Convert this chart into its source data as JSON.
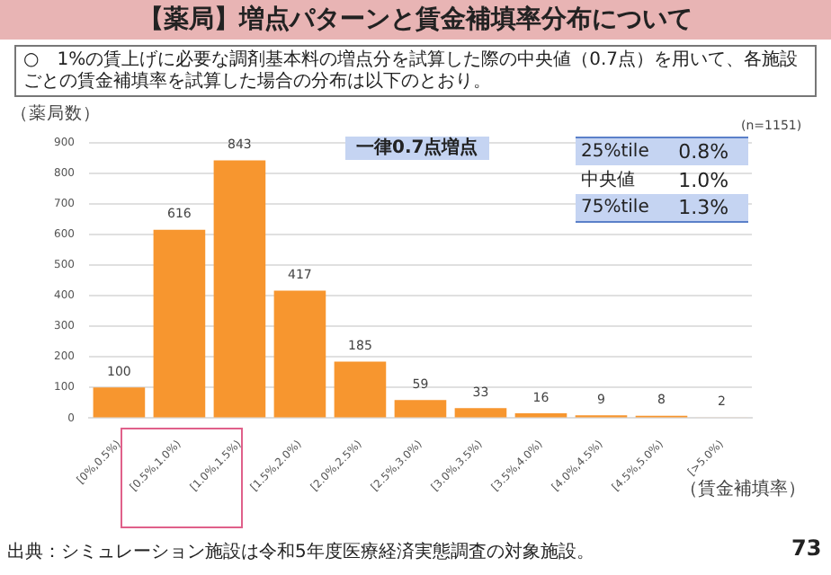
{
  "chart_data": {
    "type": "bar",
    "title": "【薬局】増点パターンと賃金補填率分布について",
    "subtitle": "○　1%の賃上げに必要な調剤基本料の増点分を試算した際の中央値（0.7点）を用いて、各施設ごとの賃金補填率を試算した場合の分布は以下のとおり。",
    "ylabel": "（薬局数）",
    "xlabel": "（賃金補填率）",
    "categories": [
      "[0%,0.5%)",
      "[0.5%,1.0%)",
      "[1.0%,1.5%)",
      "[1.5%,2.0%)",
      "[2.0%,2.5%)",
      "[2.5%,3.0%)",
      "[3.0%,3.5%)",
      "[3.5%,4.0%)",
      "[4.0%,4.5%)",
      "[4.5%,5.0%)",
      "[>5.0%)"
    ],
    "values": [
      100,
      616,
      843,
      417,
      185,
      59,
      33,
      16,
      9,
      8,
      2
    ],
    "colors": [
      "#f7962f",
      "#f7962f",
      "#f7962f",
      "#f7962f",
      "#f7962f",
      "#f7962f",
      "#f7962f",
      "#f7962f",
      "#f7962f",
      "#f7962f",
      "#f4dcc4"
    ],
    "ylim": [
      0,
      900
    ],
    "yticks": [
      0,
      100,
      200,
      300,
      400,
      500,
      600,
      700,
      800,
      900
    ],
    "grid": "y",
    "data_labels": true,
    "annotations": [
      "(n=1151)",
      "一律0.7点増点",
      "25%tile",
      "0.8%",
      "中央値",
      "1.0%",
      "75%tile",
      "1.3%",
      "出典：シミュレーション施設は令和5年度医療経済実態調査の対象施設。",
      "73"
    ]
  }
}
